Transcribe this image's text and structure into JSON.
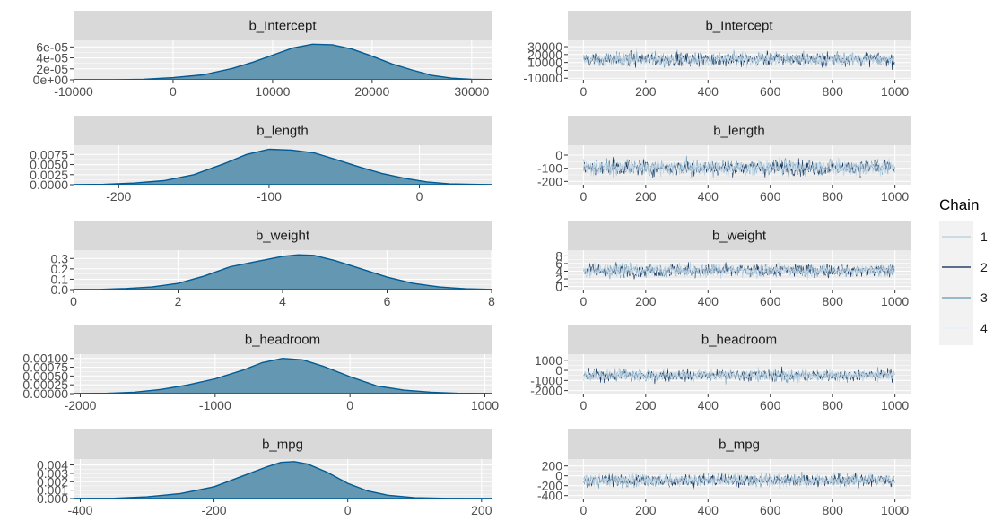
{
  "legend": {
    "title": "Chain",
    "entries": [
      {
        "label": "1",
        "color": "#b3cde0"
      },
      {
        "label": "2",
        "color": "#011f4b"
      },
      {
        "label": "3",
        "color": "#6497b1"
      },
      {
        "label": "4",
        "color": "#e6eff7"
      }
    ]
  },
  "colors": {
    "density_fill": "#6497b1",
    "density_line": "#005b96",
    "panel_bg": "#ebebeb",
    "strip_bg": "#d9d9d9",
    "grid": "#ffffff",
    "trace_colors": [
      "#b3cde0",
      "#011f4b",
      "#6497b1",
      "#e6eff7"
    ]
  },
  "chart_data": [
    {
      "type": "area",
      "panel": "b_Intercept",
      "title": "b_Intercept",
      "xlim": [
        -10000,
        32000
      ],
      "ylim": [
        0,
        7.2e-05
      ],
      "x_ticks": [
        -10000,
        0,
        10000,
        20000,
        30000
      ],
      "x_tick_labels": [
        "-10000",
        "0",
        "10000",
        "20000",
        "30000"
      ],
      "y_ticks": [
        0,
        2e-05,
        4e-05,
        6e-05
      ],
      "y_tick_labels": [
        "0e+00",
        "2e-05",
        "4e-05",
        "6e-05"
      ],
      "x": [
        -10000,
        -6000,
        -3000,
        0,
        3000,
        6000,
        8000,
        10000,
        12000,
        14000,
        16000,
        18000,
        20000,
        22000,
        24000,
        26000,
        28000,
        30000,
        32000
      ],
      "y": [
        0,
        2e-07,
        1e-06,
        4e-06,
        9e-06,
        2.1e-05,
        3.2e-05,
        4.5e-05,
        5.8e-05,
        6.5e-05,
        6.4e-05,
        5.6e-05,
        4.3e-05,
        2.9e-05,
        1.8e-05,
        8e-06,
        3e-06,
        1e-06,
        3e-07
      ]
    },
    {
      "type": "line",
      "panel": "b_Intercept",
      "title": "b_Intercept",
      "xlim": [
        -50,
        1050
      ],
      "ylim": [
        -12000,
        38000
      ],
      "x_ticks": [
        0,
        200,
        400,
        600,
        800,
        1000
      ],
      "x_tick_labels": [
        "0",
        "200",
        "400",
        "600",
        "800",
        "1000"
      ],
      "y_ticks": [
        -10000,
        0,
        10000,
        20000,
        30000
      ],
      "y_tick_labels": [
        "-10000",
        "0",
        "10000",
        "20000",
        "30000"
      ],
      "iterations": [
        1,
        1000
      ],
      "trace_mean": 14000,
      "trace_spread": 6000,
      "series": [
        {
          "name": "1"
        },
        {
          "name": "2"
        },
        {
          "name": "3"
        },
        {
          "name": "4"
        }
      ]
    },
    {
      "type": "area",
      "panel": "b_length",
      "title": "b_length",
      "xlim": [
        -230,
        48
      ],
      "ylim": [
        0,
        0.0098
      ],
      "x_ticks": [
        -200,
        -100,
        0
      ],
      "x_tick_labels": [
        "-200",
        "-100",
        "0"
      ],
      "y_ticks": [
        0,
        0.0025,
        0.005,
        0.0075
      ],
      "y_tick_labels": [
        "0.0000",
        "0.0025",
        "0.0050",
        "0.0075"
      ],
      "x": [
        -230,
        -210,
        -190,
        -170,
        -150,
        -130,
        -115,
        -100,
        -85,
        -70,
        -55,
        -40,
        -25,
        -10,
        5,
        20,
        35,
        48
      ],
      "y": [
        0,
        0.0001,
        0.0004,
        0.001,
        0.0025,
        0.0052,
        0.0075,
        0.0088,
        0.0086,
        0.0079,
        0.0062,
        0.0044,
        0.0028,
        0.0016,
        0.0007,
        0.0002,
        0.0001,
        0
      ]
    },
    {
      "type": "line",
      "panel": "b_length",
      "title": "b_length",
      "xlim": [
        -50,
        1050
      ],
      "ylim": [
        -225,
        75
      ],
      "x_ticks": [
        0,
        200,
        400,
        600,
        800,
        1000
      ],
      "x_tick_labels": [
        "0",
        "200",
        "400",
        "600",
        "800",
        "1000"
      ],
      "y_ticks": [
        -200,
        -100,
        0
      ],
      "y_tick_labels": [
        "-200",
        "-100",
        "0"
      ],
      "iterations": [
        1,
        1000
      ],
      "trace_mean": -95,
      "trace_spread": 40,
      "series": [
        {
          "name": "1"
        },
        {
          "name": "2"
        },
        {
          "name": "3"
        },
        {
          "name": "4"
        }
      ]
    },
    {
      "type": "area",
      "panel": "b_weight",
      "title": "b_weight",
      "xlim": [
        0,
        8
      ],
      "ylim": [
        0,
        0.38
      ],
      "x_ticks": [
        0,
        2,
        4,
        6,
        8
      ],
      "x_tick_labels": [
        "0",
        "2",
        "4",
        "6",
        "8"
      ],
      "y_ticks": [
        0,
        0.1,
        0.2,
        0.3
      ],
      "y_tick_labels": [
        "0.0",
        "0.1",
        "0.2",
        "0.3"
      ],
      "x": [
        0,
        0.5,
        1,
        1.5,
        2,
        2.5,
        3,
        3.5,
        4,
        4.3,
        4.6,
        5,
        5.5,
        6,
        6.5,
        7,
        7.5,
        8
      ],
      "y": [
        0,
        0.002,
        0.01,
        0.025,
        0.06,
        0.13,
        0.22,
        0.27,
        0.32,
        0.335,
        0.33,
        0.28,
        0.2,
        0.12,
        0.06,
        0.025,
        0.008,
        0.002
      ]
    },
    {
      "type": "line",
      "panel": "b_weight",
      "title": "b_weight",
      "xlim": [
        -50,
        1050
      ],
      "ylim": [
        -0.8,
        9.5
      ],
      "x_ticks": [
        0,
        200,
        400,
        600,
        800,
        1000
      ],
      "x_tick_labels": [
        "0",
        "200",
        "400",
        "600",
        "800",
        "1000"
      ],
      "y_ticks": [
        0,
        2,
        4,
        6,
        8
      ],
      "y_tick_labels": [
        "0",
        "2",
        "4",
        "6",
        "8"
      ],
      "iterations": [
        1,
        1000
      ],
      "trace_mean": 4.2,
      "trace_spread": 1.2,
      "series": [
        {
          "name": "1"
        },
        {
          "name": "2"
        },
        {
          "name": "3"
        },
        {
          "name": "4"
        }
      ]
    },
    {
      "type": "area",
      "panel": "b_headroom",
      "title": "b_headroom",
      "xlim": [
        -2050,
        1050
      ],
      "ylim": [
        0,
        0.00112
      ],
      "x_ticks": [
        -2000,
        -1000,
        0,
        1000
      ],
      "x_tick_labels": [
        "-2000",
        "-1000",
        "0",
        "1000"
      ],
      "y_ticks": [
        0,
        0.00025,
        0.0005,
        0.00075,
        0.001
      ],
      "y_tick_labels": [
        "0.00000",
        "0.00025",
        "0.00050",
        "0.00075",
        "0.00100"
      ],
      "x": [
        -2050,
        -1800,
        -1600,
        -1400,
        -1200,
        -1000,
        -800,
        -650,
        -500,
        -350,
        -200,
        0,
        200,
        400,
        600,
        800,
        1050
      ],
      "y": [
        0,
        1e-05,
        4e-05,
        0.00012,
        0.00025,
        0.00042,
        0.00066,
        0.00088,
        0.001,
        0.00096,
        0.00078,
        0.00048,
        0.00022,
        0.0001,
        4e-05,
        1e-05,
        0
      ]
    },
    {
      "type": "line",
      "panel": "b_headroom",
      "title": "b_headroom",
      "xlim": [
        -50,
        1050
      ],
      "ylim": [
        -2300,
        1600
      ],
      "x_ticks": [
        0,
        200,
        400,
        600,
        800,
        1000
      ],
      "x_tick_labels": [
        "0",
        "200",
        "400",
        "600",
        "800",
        "1000"
      ],
      "y_ticks": [
        -2000,
        -1000,
        0,
        1000
      ],
      "y_tick_labels": [
        "-2000",
        "-1000",
        "0",
        "1000"
      ],
      "iterations": [
        1,
        1000
      ],
      "trace_mean": -480,
      "trace_spread": 400,
      "series": [
        {
          "name": "1"
        },
        {
          "name": "2"
        },
        {
          "name": "3"
        },
        {
          "name": "4"
        }
      ]
    },
    {
      "type": "area",
      "panel": "b_mpg",
      "title": "b_mpg",
      "xlim": [
        -410,
        215
      ],
      "ylim": [
        0,
        0.0047
      ],
      "x_ticks": [
        -400,
        -200,
        0,
        200
      ],
      "x_tick_labels": [
        "-400",
        "-200",
        "0",
        "200"
      ],
      "y_ticks": [
        0,
        0.001,
        0.002,
        0.003,
        0.004
      ],
      "y_tick_labels": [
        "0.000",
        "0.001",
        "0.002",
        "0.003",
        "0.004"
      ],
      "x": [
        -410,
        -350,
        -300,
        -250,
        -200,
        -160,
        -120,
        -100,
        -80,
        -60,
        -30,
        0,
        30,
        60,
        100,
        150,
        215
      ],
      "y": [
        0,
        3e-05,
        0.0002,
        0.0006,
        0.0014,
        0.0026,
        0.0038,
        0.0043,
        0.0044,
        0.0041,
        0.0031,
        0.0018,
        0.0009,
        0.0004,
        0.0001,
        2e-05,
        0
      ]
    },
    {
      "type": "line",
      "panel": "b_mpg",
      "title": "b_mpg",
      "xlim": [
        -50,
        1050
      ],
      "ylim": [
        -460,
        340
      ],
      "x_ticks": [
        0,
        200,
        400,
        600,
        800,
        1000
      ],
      "x_tick_labels": [
        "0",
        "200",
        "400",
        "600",
        "800",
        "1000"
      ],
      "y_ticks": [
        -400,
        -200,
        0,
        200
      ],
      "y_tick_labels": [
        "-400",
        "-200",
        "0",
        "200"
      ],
      "iterations": [
        1,
        1000
      ],
      "trace_mean": -90,
      "trace_spread": 90,
      "series": [
        {
          "name": "1"
        },
        {
          "name": "2"
        },
        {
          "name": "3"
        },
        {
          "name": "4"
        }
      ]
    }
  ]
}
